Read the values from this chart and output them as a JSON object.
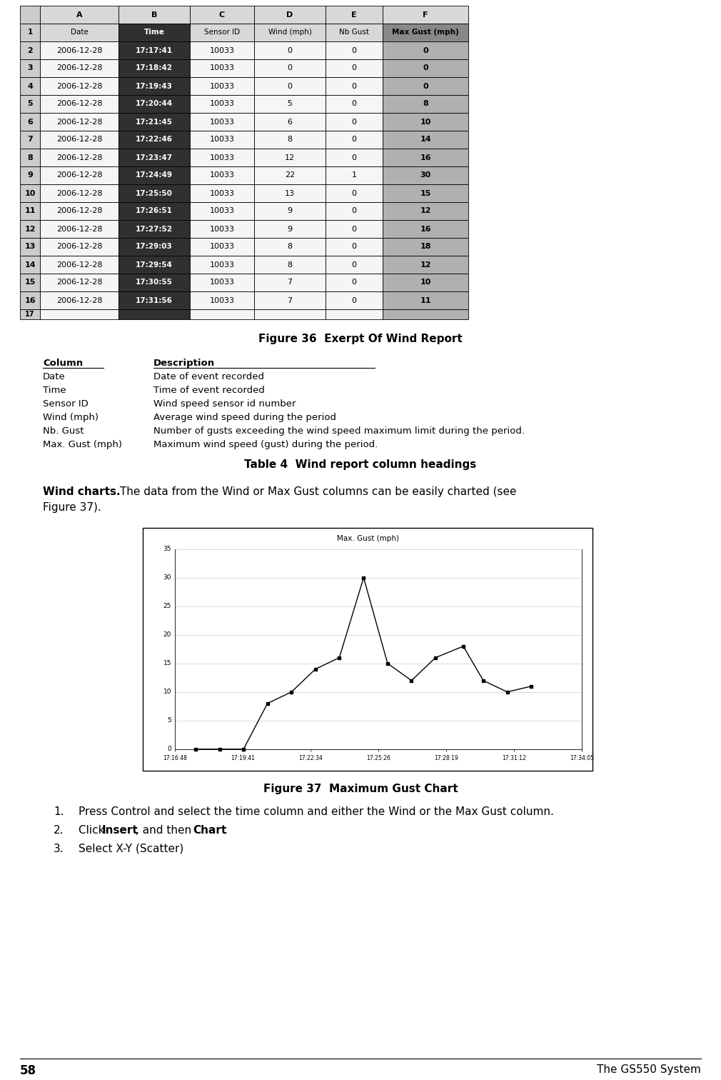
{
  "page_number": "58",
  "page_title": "The GS550 System",
  "figure36_title": "Figure 36  Exerpt Of Wind Report",
  "spreadsheet_letters": [
    "",
    "A",
    "B",
    "C",
    "D",
    "E",
    "F"
  ],
  "spreadsheet_headers": [
    "1",
    "Date",
    "Time",
    "Sensor ID",
    "Wind (mph)",
    "Nb Gust",
    "Max Gust (mph)"
  ],
  "spreadsheet_data": [
    [
      "2",
      "2006-12-28",
      "17:17:41",
      "10033",
      "0",
      "0",
      "0"
    ],
    [
      "3",
      "2006-12-28",
      "17:18:42",
      "10033",
      "0",
      "0",
      "0"
    ],
    [
      "4",
      "2006-12-28",
      "17:19:43",
      "10033",
      "0",
      "0",
      "0"
    ],
    [
      "5",
      "2006-12-28",
      "17:20:44",
      "10033",
      "5",
      "0",
      "8"
    ],
    [
      "6",
      "2006-12-28",
      "17:21:45",
      "10033",
      "6",
      "0",
      "10"
    ],
    [
      "7",
      "2006-12-28",
      "17:22:46",
      "10033",
      "8",
      "0",
      "14"
    ],
    [
      "8",
      "2006-12-28",
      "17:23:47",
      "10033",
      "12",
      "0",
      "16"
    ],
    [
      "9",
      "2006-12-28",
      "17:24:49",
      "10033",
      "22",
      "1",
      "30"
    ],
    [
      "10",
      "2006-12-28",
      "17:25:50",
      "10033",
      "13",
      "0",
      "15"
    ],
    [
      "11",
      "2006-12-28",
      "17:26:51",
      "10033",
      "9",
      "0",
      "12"
    ],
    [
      "12",
      "2006-12-28",
      "17:27:52",
      "10033",
      "9",
      "0",
      "16"
    ],
    [
      "13",
      "2006-12-28",
      "17:29:03",
      "10033",
      "8",
      "0",
      "18"
    ],
    [
      "14",
      "2006-12-28",
      "17:29:54",
      "10033",
      "8",
      "0",
      "12"
    ],
    [
      "15",
      "2006-12-28",
      "17:30:55",
      "10033",
      "7",
      "0",
      "10"
    ],
    [
      "16",
      "2006-12-28",
      "17:31:56",
      "10033",
      "7",
      "0",
      "11"
    ]
  ],
  "col_descriptions": [
    [
      "Column",
      "Description"
    ],
    [
      "Date",
      "Date of event recorded"
    ],
    [
      "Time",
      "Time of event recorded"
    ],
    [
      "Sensor ID",
      "Wind speed sensor id number"
    ],
    [
      "Wind (mph)",
      "Average wind speed during the period"
    ],
    [
      "Nb. Gust",
      "Number of gusts exceeding the wind speed maximum limit during the period."
    ],
    [
      "Max. Gust (mph)",
      "Maximum wind speed (gust) during the period."
    ]
  ],
  "table4_title": "Table 4  Wind report column headings",
  "wind_charts_bold": "Wind charts.",
  "wind_charts_text": " The data from the Wind or Max Gust columns can be easily charted (see Figure 37).",
  "figure37_title": "Figure 37  Maximum Gust Chart",
  "chart_title": "Max. Gust (mph)",
  "chart_times": [
    "17:17:41",
    "17:18:42",
    "17:19:43",
    "17:20:44",
    "17:21:45",
    "17:22:46",
    "17:23:47",
    "17:24:49",
    "17:25:50",
    "17:26:51",
    "17:27:52",
    "17:29:03",
    "17:29:54",
    "17:30:55",
    "17:31:56"
  ],
  "chart_values": [
    0,
    0,
    0,
    8,
    10,
    14,
    16,
    30,
    15,
    12,
    16,
    18,
    12,
    10,
    11
  ],
  "chart_xtick_labels": [
    "17:16:48",
    "17:19:41",
    "17:22:34",
    "17:25:26",
    "17:28:19",
    "17:31:12",
    "17:34:05"
  ],
  "chart_ytick_labels": [
    "0",
    "5",
    "10",
    "15",
    "20",
    "25",
    "30",
    "35"
  ],
  "instr1": "Press Control and select the time column and either the Wind or the Max Gust column.",
  "instr2_pre": "Click ",
  "instr2_bold1": "Insert",
  "instr2_mid": ", and then ",
  "instr2_bold2": "Chart",
  "instr2_end": ".",
  "instr3": "Select X-Y (Scatter)",
  "bg_color": "#ffffff"
}
